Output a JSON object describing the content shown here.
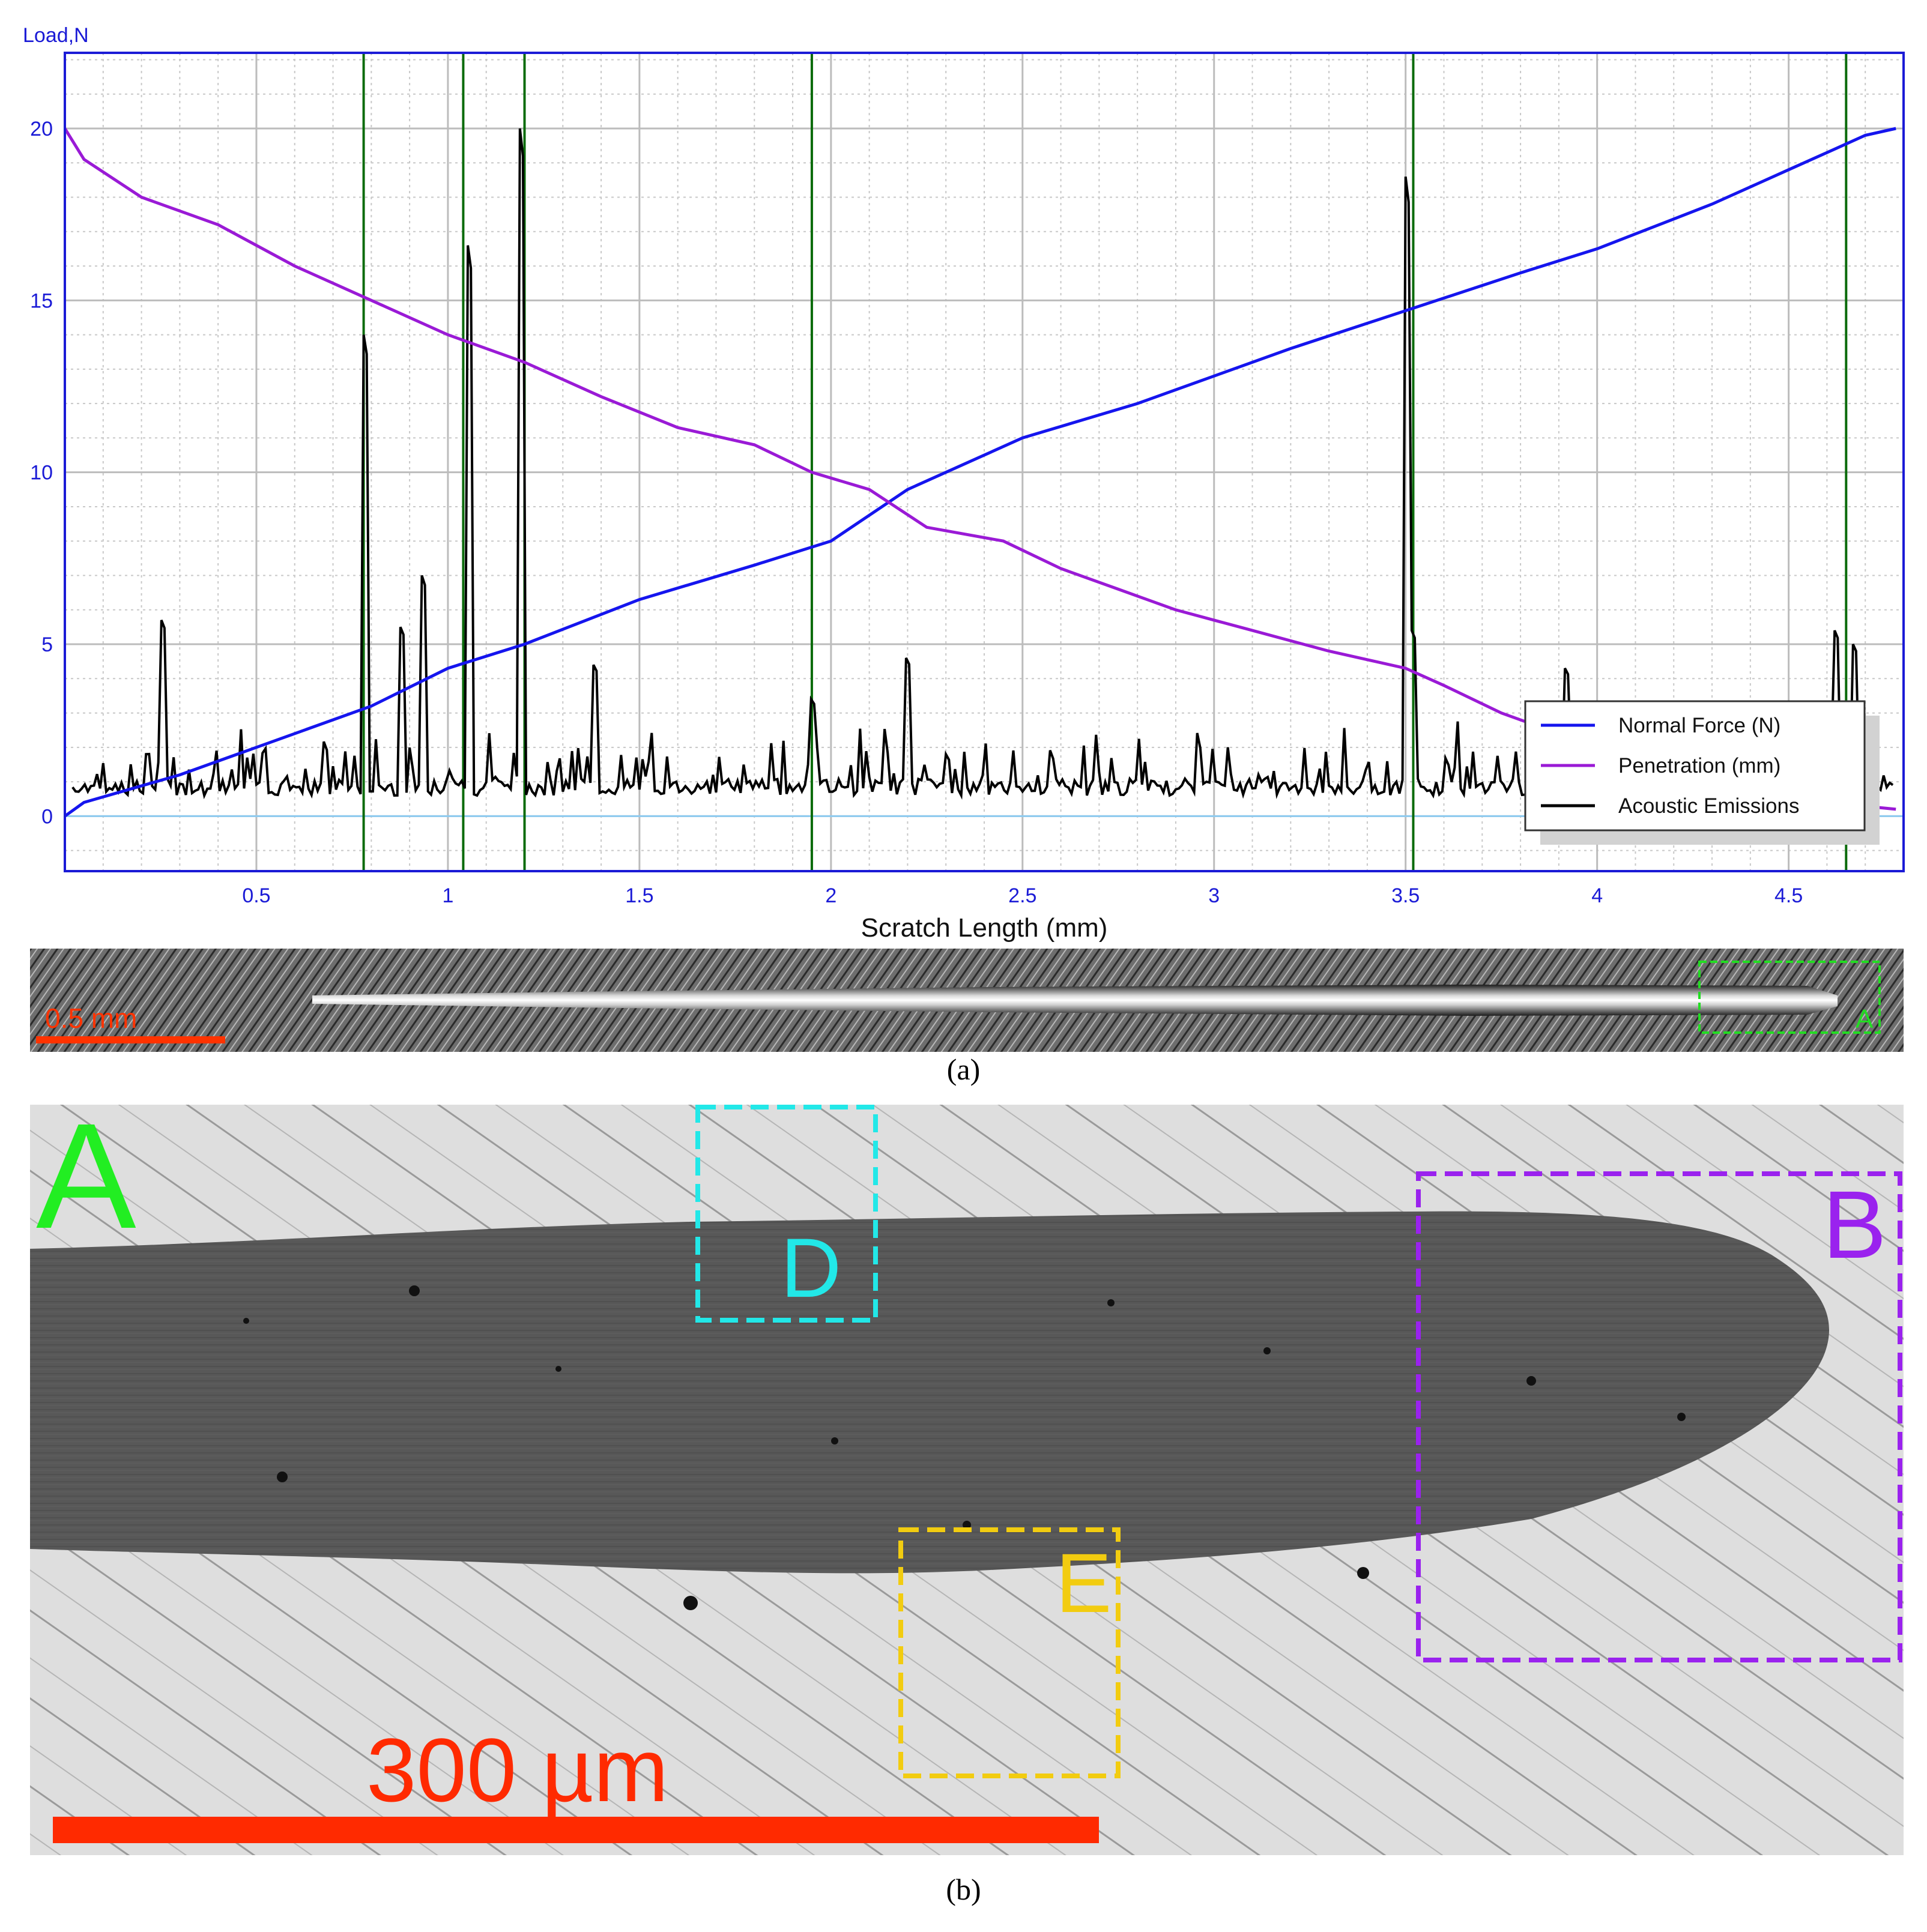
{
  "chart_data": {
    "type": "line",
    "ylabel": "Load,N",
    "xlabel": "Scratch Length (mm)",
    "xlim": [
      0,
      4.8
    ],
    "ylim": [
      -1.6,
      22.2
    ],
    "x_ticks": [
      0.5,
      1,
      1.5,
      2,
      2.5,
      3,
      3.5,
      4,
      4.5
    ],
    "x_tick_labels": [
      "0.5",
      "1",
      "1.5",
      "2",
      "2.5",
      "3",
      "3.5",
      "4",
      "4.5"
    ],
    "y_ticks": [
      0,
      5,
      10,
      15,
      20
    ],
    "y_tick_labels": [
      "0",
      "5",
      "10",
      "15",
      "20"
    ],
    "grid": true,
    "legend_position": "bottom-right",
    "series": [
      {
        "name": "Normal Force (N)",
        "color": "#1515ee",
        "x": [
          0.0,
          0.05,
          0.3,
          0.5,
          0.8,
          1.0,
          1.2,
          1.5,
          1.8,
          2.0,
          2.2,
          2.5,
          2.8,
          3.0,
          3.2,
          3.5,
          3.8,
          4.0,
          4.3,
          4.5,
          4.6,
          4.7,
          4.78
        ],
        "y": [
          0.0,
          0.4,
          1.2,
          2.0,
          3.2,
          4.3,
          5.0,
          6.3,
          7.3,
          8.0,
          9.5,
          11.0,
          12.0,
          12.8,
          13.6,
          14.7,
          15.8,
          16.5,
          17.8,
          18.8,
          19.3,
          19.8,
          20.0
        ]
      },
      {
        "name": "Penetration (mm)",
        "color": "#9a1ad6",
        "x": [
          0.0,
          0.05,
          0.2,
          0.4,
          0.6,
          0.8,
          1.0,
          1.2,
          1.4,
          1.6,
          1.8,
          1.95,
          2.1,
          2.25,
          2.45,
          2.6,
          2.75,
          2.9,
          3.1,
          3.3,
          3.5,
          3.6,
          3.75,
          3.85,
          4.0,
          4.2,
          4.4,
          4.6,
          4.78
        ],
        "y": [
          20.0,
          19.1,
          18.0,
          17.2,
          16.0,
          15.0,
          14.0,
          13.2,
          12.2,
          11.3,
          10.8,
          10.0,
          9.5,
          8.4,
          8.0,
          7.2,
          6.6,
          6.0,
          5.4,
          4.8,
          4.3,
          3.8,
          3.0,
          2.6,
          2.0,
          1.4,
          0.9,
          0.4,
          0.2
        ]
      },
      {
        "name": "Acoustic Emissions",
        "color": "#000000",
        "baseline": [
          0.6,
          2.0
        ],
        "peaks": [
          {
            "x": 0.25,
            "y": 5.7
          },
          {
            "x": 0.78,
            "y": 14.0
          },
          {
            "x": 0.88,
            "y": 5.5
          },
          {
            "x": 0.93,
            "y": 7.0
          },
          {
            "x": 1.05,
            "y": 16.6
          },
          {
            "x": 1.19,
            "y": 20.0
          },
          {
            "x": 1.38,
            "y": 4.4
          },
          {
            "x": 1.95,
            "y": 3.4
          },
          {
            "x": 2.2,
            "y": 4.6
          },
          {
            "x": 3.5,
            "y": 18.6
          },
          {
            "x": 3.52,
            "y": 5.4
          },
          {
            "x": 3.92,
            "y": 4.3
          },
          {
            "x": 4.62,
            "y": 5.4
          },
          {
            "x": 4.67,
            "y": 5.0
          }
        ]
      }
    ],
    "vertical_markers": {
      "color": "#0b6b0b",
      "x": [
        0.78,
        1.04,
        1.2,
        1.95,
        3.52,
        4.65
      ]
    }
  },
  "strip": {
    "scale_label": "0.5 mm",
    "box_label": "A",
    "scale_color": "#ff3300",
    "box_color": "#22dd22"
  },
  "sem": {
    "panel_label": "A",
    "box_b_label": "B",
    "box_d_label": "D",
    "box_e_label": "E",
    "scale_label": "300 µm",
    "colors": {
      "panel": "#22ee22",
      "box_b": "#9a22ee",
      "box_d": "#22e8e8",
      "box_e": "#f2cc10",
      "scale": "#ff2a00"
    }
  },
  "captions": {
    "a": "(a)",
    "b": "(b)"
  }
}
